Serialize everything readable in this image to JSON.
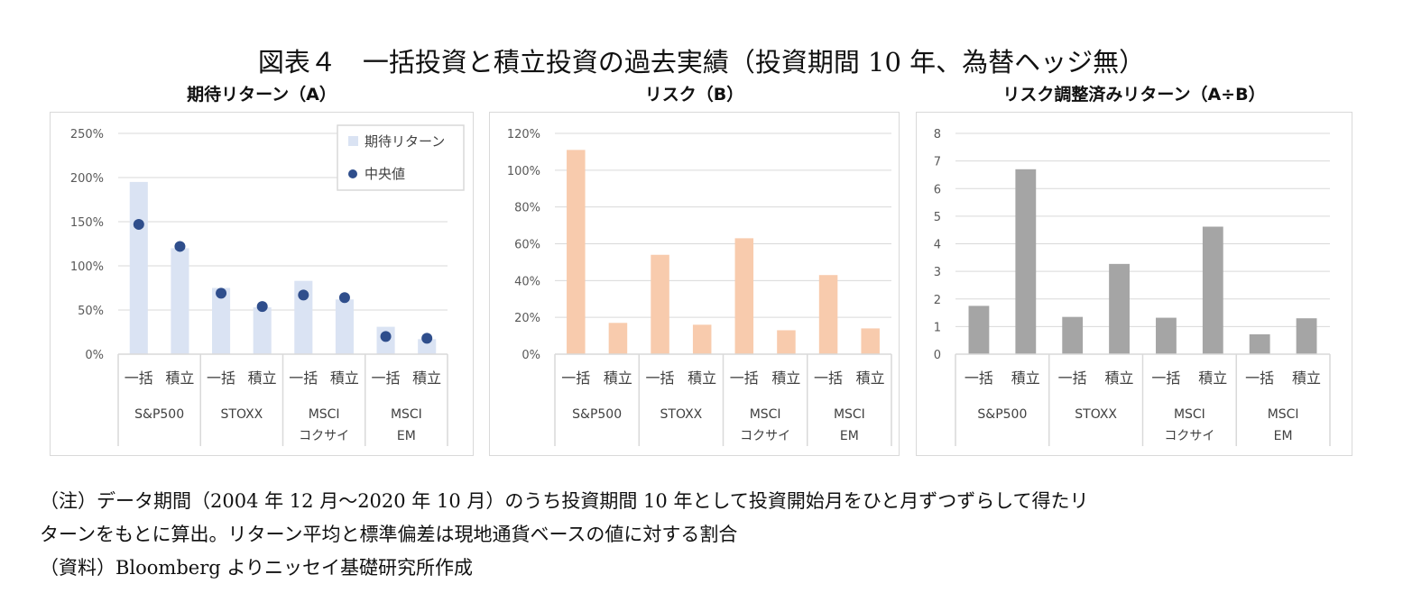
{
  "figure_title": "図表４　一括投資と積立投資の過去実績（投資期間 10 年、為替ヘッジ無）",
  "colors": {
    "return_bar": "#dae3f3",
    "median_dot": "#2f4e8c",
    "risk_bar": "#f8cbad",
    "ratio_bar": "#a5a5a5",
    "grid": "#d9d9d9",
    "axis_text": "#595959"
  },
  "chart_data": [
    {
      "type": "bar",
      "title": "期待リターン（A）",
      "sub_categories": [
        "一括",
        "積立"
      ],
      "groups": [
        {
          "label_lines": [
            "S&P500"
          ]
        },
        {
          "label_lines": [
            "STOXX"
          ]
        },
        {
          "label_lines": [
            "MSCI",
            "コクサイ"
          ]
        },
        {
          "label_lines": [
            "MSCI",
            "EM"
          ]
        }
      ],
      "series": [
        {
          "name": "期待リターン",
          "kind": "bar",
          "values": [
            195,
            120,
            75,
            53,
            83,
            62,
            31,
            17
          ]
        },
        {
          "name": "中央値",
          "kind": "dot",
          "values": [
            147,
            122,
            69,
            54,
            67,
            64,
            20,
            18
          ]
        }
      ],
      "ylim": [
        0,
        250
      ],
      "yticks": [
        0,
        50,
        100,
        150,
        200,
        250
      ],
      "ytick_labels": [
        "0%",
        "50%",
        "100%",
        "150%",
        "200%",
        "250%"
      ],
      "legend_position": "top-right",
      "legend": [
        "期待リターン",
        "中央値"
      ]
    },
    {
      "type": "bar",
      "title": "リスク（B）",
      "sub_categories": [
        "一括",
        "積立"
      ],
      "groups": [
        {
          "label_lines": [
            "S&P500"
          ]
        },
        {
          "label_lines": [
            "STOXX"
          ]
        },
        {
          "label_lines": [
            "MSCI",
            "コクサイ"
          ]
        },
        {
          "label_lines": [
            "MSCI",
            "EM"
          ]
        }
      ],
      "series": [
        {
          "name": "リスク",
          "kind": "bar",
          "values": [
            111,
            17,
            54,
            16,
            63,
            13,
            43,
            14
          ]
        }
      ],
      "ylim": [
        0,
        120
      ],
      "yticks": [
        0,
        20,
        40,
        60,
        80,
        100,
        120
      ],
      "ytick_labels": [
        "0%",
        "20%",
        "40%",
        "60%",
        "80%",
        "100%",
        "120%"
      ]
    },
    {
      "type": "bar",
      "title": "リスク調整済みリターン（A÷B）",
      "sub_categories": [
        "一括",
        "積立"
      ],
      "groups": [
        {
          "label_lines": [
            "S&P500"
          ]
        },
        {
          "label_lines": [
            "STOXX"
          ]
        },
        {
          "label_lines": [
            "MSCI",
            "コクサイ"
          ]
        },
        {
          "label_lines": [
            "MSCI",
            "EM"
          ]
        }
      ],
      "series": [
        {
          "name": "リスク調整済みリターン",
          "kind": "bar",
          "values": [
            1.75,
            6.7,
            1.35,
            3.27,
            1.32,
            4.62,
            0.72,
            1.3
          ]
        }
      ],
      "ylim": [
        0,
        8
      ],
      "yticks": [
        0,
        1,
        2,
        3,
        4,
        5,
        6,
        7,
        8
      ],
      "ytick_labels": [
        "0",
        "1",
        "2",
        "3",
        "4",
        "5",
        "6",
        "7",
        "8"
      ]
    }
  ],
  "notes": {
    "line1": "（注）データ期間（2004 年 12 月～2020 年 10 月）のうち投資期間 10 年として投資開始月をひと月ずつずらして得たリ",
    "line2": "ターンをもとに算出。リターン平均と標準偏差は現地通貨ベースの値に対する割合",
    "source": "（資料）Bloomberg よりニッセイ基礎研究所作成"
  }
}
